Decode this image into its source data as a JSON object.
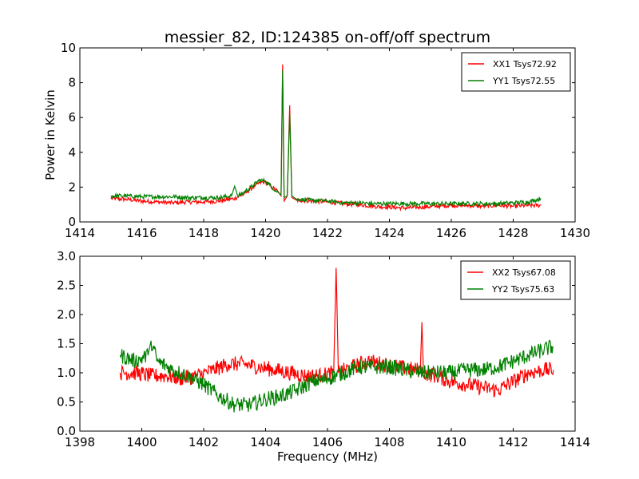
{
  "figure": {
    "title": "messier_82, ID:124385 on-off/off spectrum"
  },
  "chart_data": [
    {
      "type": "line",
      "title": "messier_82, ID:124385 on-off/off spectrum",
      "xlabel": "",
      "ylabel": "Power in Kelvin",
      "xlim": [
        1414,
        1430
      ],
      "ylim": [
        0,
        10
      ],
      "xticks": [
        1414,
        1416,
        1418,
        1420,
        1422,
        1424,
        1426,
        1428,
        1430
      ],
      "yticks": [
        0,
        2,
        4,
        6,
        8,
        10
      ],
      "legend_position": "top-right",
      "grid": false,
      "series": [
        {
          "name": "XX1 Tsys72.92",
          "color": "#ff0000",
          "x": [
            1415.0,
            1415.5,
            1416.0,
            1416.5,
            1417.0,
            1417.5,
            1418.0,
            1418.5,
            1419.0,
            1419.3,
            1419.6,
            1419.8,
            1420.0,
            1420.2,
            1420.4,
            1420.5,
            1420.55,
            1420.6,
            1420.7,
            1420.78,
            1420.85,
            1421.0,
            1421.5,
            1422.0,
            1422.5,
            1423.0,
            1423.5,
            1424.0,
            1424.5,
            1425.0,
            1425.5,
            1426.0,
            1426.5,
            1427.0,
            1427.5,
            1428.0,
            1428.5,
            1428.9
          ],
          "y": [
            1.35,
            1.3,
            1.2,
            1.15,
            1.1,
            1.15,
            1.15,
            1.2,
            1.35,
            1.6,
            2.0,
            2.25,
            2.3,
            2.0,
            1.75,
            1.5,
            9.05,
            1.2,
            1.5,
            6.7,
            1.4,
            1.25,
            1.2,
            1.15,
            1.05,
            1.0,
            0.9,
            0.85,
            0.8,
            0.85,
            0.9,
            0.95,
            0.95,
            0.9,
            0.95,
            0.9,
            0.95,
            0.95
          ]
        },
        {
          "name": "YY1 Tsys72.55",
          "color": "#008000",
          "x": [
            1415.0,
            1415.5,
            1416.0,
            1416.5,
            1417.0,
            1417.5,
            1418.0,
            1418.5,
            1418.9,
            1419.0,
            1419.1,
            1419.3,
            1419.6,
            1419.8,
            1420.0,
            1420.2,
            1420.4,
            1420.5,
            1420.55,
            1420.6,
            1420.7,
            1420.78,
            1420.85,
            1421.0,
            1421.5,
            1422.0,
            1422.5,
            1423.0,
            1423.5,
            1424.0,
            1424.5,
            1425.0,
            1425.5,
            1426.0,
            1426.5,
            1427.0,
            1427.5,
            1428.0,
            1428.5,
            1428.9
          ],
          "y": [
            1.5,
            1.5,
            1.45,
            1.45,
            1.45,
            1.4,
            1.4,
            1.4,
            1.5,
            2.05,
            1.5,
            1.7,
            2.1,
            2.4,
            2.35,
            2.0,
            1.7,
            1.55,
            8.7,
            1.4,
            1.5,
            6.2,
            1.5,
            1.3,
            1.25,
            1.2,
            1.1,
            1.1,
            1.05,
            1.05,
            1.05,
            1.05,
            1.05,
            1.05,
            1.05,
            1.05,
            1.05,
            1.1,
            1.15,
            1.35
          ]
        }
      ]
    },
    {
      "type": "line",
      "title": "",
      "xlabel": "Frequency (MHz)",
      "ylabel": "",
      "xlim": [
        1398,
        1414
      ],
      "ylim": [
        0.0,
        3.0
      ],
      "xticks": [
        1398,
        1400,
        1402,
        1404,
        1406,
        1408,
        1410,
        1412,
        1414
      ],
      "yticks": [
        "0.0",
        "0.5",
        "1.0",
        "1.5",
        "2.0",
        "2.5",
        "3.0"
      ],
      "legend_position": "top-right",
      "grid": false,
      "series": [
        {
          "name": "XX2 Tsys67.08",
          "color": "#ff0000",
          "x": [
            1399.3,
            1399.8,
            1400.3,
            1400.8,
            1401.3,
            1401.8,
            1402.3,
            1402.8,
            1403.3,
            1403.8,
            1404.3,
            1404.8,
            1405.3,
            1405.8,
            1406.2,
            1406.28,
            1406.35,
            1406.8,
            1407.3,
            1407.8,
            1408.3,
            1408.8,
            1409.0,
            1409.05,
            1409.1,
            1409.5,
            1410.0,
            1410.5,
            1411.0,
            1411.5,
            1412.0,
            1412.5,
            1413.0,
            1413.3
          ],
          "y": [
            1.0,
            1.0,
            0.95,
            0.95,
            0.9,
            0.95,
            1.05,
            1.15,
            1.15,
            1.1,
            1.05,
            1.0,
            0.95,
            0.95,
            1.0,
            2.8,
            1.0,
            1.1,
            1.2,
            1.15,
            1.1,
            1.05,
            1.05,
            1.87,
            1.0,
            0.95,
            0.85,
            0.8,
            0.75,
            0.7,
            0.85,
            1.0,
            1.05,
            1.05
          ]
        },
        {
          "name": "YY2 Tsys75.63",
          "color": "#008000",
          "x": [
            1399.3,
            1399.8,
            1400.2,
            1400.3,
            1400.5,
            1401.0,
            1401.5,
            1402.0,
            1402.5,
            1403.0,
            1403.5,
            1404.0,
            1404.5,
            1405.0,
            1405.5,
            1406.0,
            1406.5,
            1407.0,
            1407.5,
            1408.0,
            1408.5,
            1409.0,
            1409.5,
            1410.0,
            1410.5,
            1411.0,
            1411.5,
            1412.0,
            1412.5,
            1413.0,
            1413.3
          ],
          "y": [
            1.3,
            1.2,
            1.3,
            1.55,
            1.2,
            1.05,
            0.95,
            0.8,
            0.6,
            0.45,
            0.45,
            0.55,
            0.6,
            0.7,
            0.85,
            0.9,
            1.0,
            1.1,
            1.1,
            1.1,
            1.05,
            1.0,
            1.0,
            1.0,
            1.05,
            1.05,
            1.1,
            1.2,
            1.3,
            1.4,
            1.45
          ]
        }
      ]
    }
  ]
}
